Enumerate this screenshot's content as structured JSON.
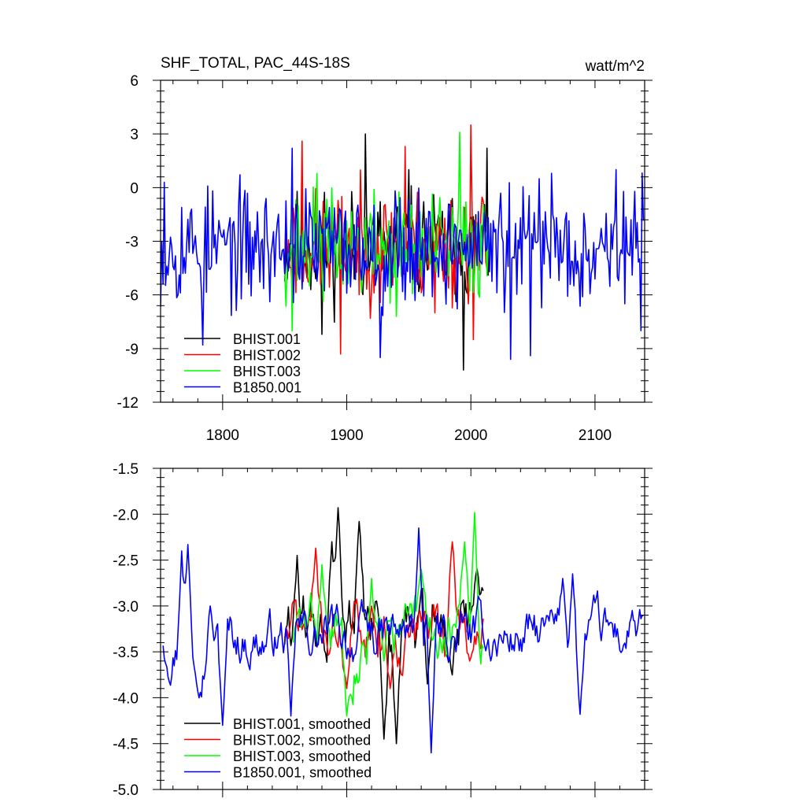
{
  "chart_data": [
    {
      "type": "line",
      "title": "SHF_TOTAL, PAC_44S-18S",
      "units": "watt/m^2",
      "xlim": [
        1750,
        2140
      ],
      "ylim": [
        -12,
        6
      ],
      "xticks": [
        1800,
        1900,
        2000,
        2100
      ],
      "yticks": [
        -12,
        -9,
        -6,
        -3,
        0,
        3,
        6
      ],
      "legend_position": "bottom-left",
      "series": [
        {
          "name": "BHIST.001",
          "color": "#000000",
          "x_start": 1850,
          "x_end": 2014,
          "mean": -3.3,
          "amp": 2.2,
          "seed": 11,
          "peaks": [
            [
              1915,
              3.0
            ],
            [
              1994,
              -10.2
            ],
            [
              1880,
              -8.2
            ],
            [
              1950,
              1.0
            ],
            [
              2013,
              2.2
            ]
          ]
        },
        {
          "name": "BHIST.002",
          "color": "#ff0000",
          "x_start": 1850,
          "x_end": 2014,
          "mean": -3.3,
          "amp": 2.2,
          "seed": 23,
          "peaks": [
            [
              1864,
              2.6
            ],
            [
              1895,
              -9.3
            ],
            [
              1947,
              2.3
            ],
            [
              2000,
              3.5
            ],
            [
              2002,
              -8.5
            ],
            [
              1971,
              -7.0
            ]
          ]
        },
        {
          "name": "BHIST.003",
          "color": "#00ff00",
          "x_start": 1850,
          "x_end": 2014,
          "mean": -3.3,
          "amp": 2.1,
          "seed": 37,
          "peaks": [
            [
              1991,
              3.1
            ],
            [
              1876,
              0.8
            ],
            [
              1856,
              -8.0
            ],
            [
              1940,
              -7.2
            ]
          ]
        },
        {
          "name": "B1850.001",
          "color": "#0000ff",
          "x_start": 1750,
          "x_end": 2139,
          "mean": -3.3,
          "amp": 2.3,
          "seed": 53,
          "peaks": [
            [
              1784,
              -8.8
            ],
            [
              1856,
              2.2
            ],
            [
              1927,
              -9.5
            ],
            [
              2032,
              -9.6
            ],
            [
              2048,
              -9.4
            ],
            [
              2055,
              0.5
            ],
            [
              2065,
              0.8
            ],
            [
              2117,
              1.0
            ],
            [
              2137,
              -8.0
            ],
            [
              1753,
              0.3
            ]
          ]
        }
      ]
    },
    {
      "type": "line",
      "title": "",
      "xlim": [
        1750,
        2140
      ],
      "ylim": [
        -5.0,
        -1.5
      ],
      "yticks": [
        -5.0,
        -4.5,
        -4.0,
        -3.5,
        -3.0,
        -2.5,
        -2.0,
        -1.5
      ],
      "ytick_labels": [
        "-5.0",
        "-4.5",
        "-4.0",
        "-3.5",
        "-3.0",
        "-2.5",
        "-2.0",
        "-1.5"
      ],
      "legend_position": "bottom-left",
      "series": [
        {
          "name": "BHIST.001, smoothed",
          "color": "#000000",
          "x_start": 1850,
          "x_end": 2010,
          "mean": -3.3,
          "amp": 0.35,
          "seed": 61,
          "peaks": [
            [
              1893,
              -1.93
            ],
            [
              1888,
              -2.3
            ],
            [
              1910,
              -2.08
            ],
            [
              1930,
              -4.45
            ],
            [
              1940,
              -4.5
            ],
            [
              1965,
              -3.85
            ],
            [
              2005,
              -2.6
            ],
            [
              1860,
              -2.45
            ]
          ]
        },
        {
          "name": "BHIST.002, smoothed",
          "color": "#ff0000",
          "x_start": 1850,
          "x_end": 2010,
          "mean": -3.25,
          "amp": 0.3,
          "seed": 71,
          "peaks": [
            [
              1875,
              -2.37
            ],
            [
              1900,
              -3.9
            ],
            [
              1920,
              -3.0
            ],
            [
              1935,
              -3.9
            ],
            [
              1985,
              -2.3
            ],
            [
              1999,
              -3.6
            ]
          ]
        },
        {
          "name": "BHIST.003, smoothed",
          "color": "#00ff00",
          "x_start": 1857,
          "x_end": 2010,
          "mean": -3.3,
          "amp": 0.3,
          "seed": 83,
          "peaks": [
            [
              1880,
              -2.55
            ],
            [
              1900,
              -4.2
            ],
            [
              1920,
              -2.7
            ],
            [
              1930,
              -3.6
            ],
            [
              1960,
              -2.6
            ],
            [
              2003,
              -1.98
            ],
            [
              1995,
              -2.3
            ]
          ]
        },
        {
          "name": "B1850.001, smoothed",
          "color": "#0000ff",
          "x_start": 1752,
          "x_end": 2139,
          "mean": -3.35,
          "amp": 0.25,
          "seed": 97,
          "peaks": [
            [
              1767,
              -2.4
            ],
            [
              1772,
              -2.33
            ],
            [
              1790,
              -3.0
            ],
            [
              1800,
              -4.3
            ],
            [
              1855,
              -4.2
            ],
            [
              1958,
              -2.15
            ],
            [
              1968,
              -4.6
            ],
            [
              2074,
              -2.7
            ],
            [
              2082,
              -2.65
            ],
            [
              2088,
              -4.18
            ],
            [
              2130,
              -3.05
            ]
          ]
        }
      ]
    }
  ]
}
